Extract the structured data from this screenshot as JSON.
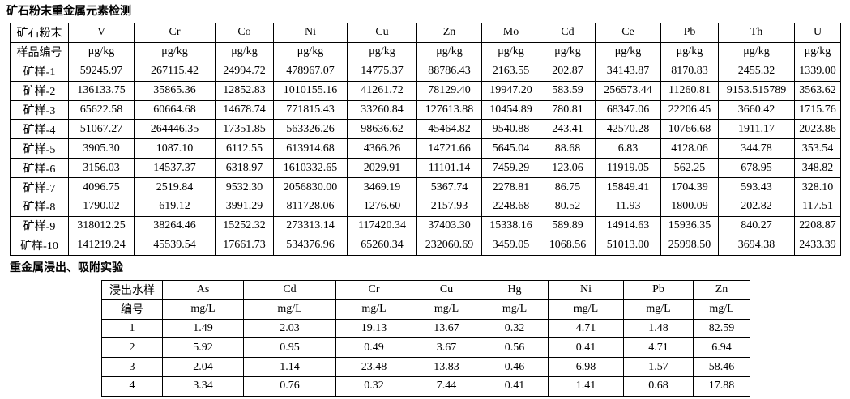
{
  "tables": [
    {
      "title": "矿石粉末重金属元素检测",
      "rows": [
        [
          "矿石粉末",
          "V",
          "Cr",
          "Co",
          "Ni",
          "Cu",
          "Zn",
          "Mo",
          "Cd",
          "Ce",
          "Pb",
          "Th",
          "U"
        ],
        [
          "样品编号",
          "μg/kg",
          "μg/kg",
          "μg/kg",
          "μg/kg",
          "μg/kg",
          "μg/kg",
          "μg/kg",
          "μg/kg",
          "μg/kg",
          "μg/kg",
          "μg/kg",
          "μg/kg"
        ],
        [
          "矿样-1",
          "59245.97",
          "267115.42",
          "24994.72",
          "478967.07",
          "14775.37",
          "88786.43",
          "2163.55",
          "202.87",
          "34143.87",
          "8170.83",
          "2455.32",
          "1339.00"
        ],
        [
          "矿样-2",
          "136133.75",
          "35865.36",
          "12852.83",
          "1010155.16",
          "41261.72",
          "78129.40",
          "19947.20",
          "583.59",
          "256573.44",
          "11260.81",
          "9153.515789",
          "3563.62"
        ],
        [
          "矿样-3",
          "65622.58",
          "60664.68",
          "14678.74",
          "771815.43",
          "33260.84",
          "127613.88",
          "10454.89",
          "780.81",
          "68347.06",
          "22206.45",
          "3660.42",
          "1715.76"
        ],
        [
          "矿样-4",
          "51067.27",
          "264446.35",
          "17351.85",
          "563326.26",
          "98636.62",
          "45464.82",
          "9540.88",
          "243.41",
          "42570.28",
          "10766.68",
          "1911.17",
          "2023.86"
        ],
        [
          "矿样-5",
          "3905.30",
          "1087.10",
          "6112.55",
          "613914.68",
          "4366.26",
          "14721.66",
          "5645.04",
          "88.68",
          "6.83",
          "4128.06",
          "344.78",
          "353.54"
        ],
        [
          "矿样-6",
          "3156.03",
          "14537.37",
          "6318.97",
          "1610332.65",
          "2029.91",
          "11101.14",
          "7459.29",
          "123.06",
          "11919.05",
          "562.25",
          "678.95",
          "348.82"
        ],
        [
          "矿样-7",
          "4096.75",
          "2519.84",
          "9532.30",
          "2056830.00",
          "3469.19",
          "5367.74",
          "2278.81",
          "86.75",
          "15849.41",
          "1704.39",
          "593.43",
          "328.10"
        ],
        [
          "矿样-8",
          "1790.02",
          "619.12",
          "3991.29",
          "811728.06",
          "1276.60",
          "2157.93",
          "2248.68",
          "80.52",
          "11.93",
          "1800.09",
          "202.82",
          "117.51"
        ],
        [
          "矿样-9",
          "318012.25",
          "38264.46",
          "15252.32",
          "273313.14",
          "117420.34",
          "37403.30",
          "15338.16",
          "589.89",
          "14914.63",
          "15936.35",
          "840.27",
          "2208.87"
        ],
        [
          "矿样-10",
          "141219.24",
          "45539.54",
          "17661.73",
          "534376.96",
          "65260.34",
          "232060.69",
          "3459.05",
          "1068.56",
          "51013.00",
          "25998.50",
          "3694.38",
          "2433.39"
        ]
      ]
    },
    {
      "title": "重金属浸出、吸附实验",
      "rows": [
        [
          "浸出水样",
          "As",
          "Cd",
          "Cr",
          "Cu",
          "Hg",
          "Ni",
          "Pb",
          "Zn"
        ],
        [
          "编号",
          "mg/L",
          "mg/L",
          "mg/L",
          "mg/L",
          "mg/L",
          "mg/L",
          "mg/L",
          "mg/L"
        ],
        [
          "1",
          "1.49",
          "2.03",
          "19.13",
          "13.67",
          "0.32",
          "4.71",
          "1.48",
          "82.59"
        ],
        [
          "2",
          "5.92",
          "0.95",
          "0.49",
          "3.67",
          "0.56",
          "0.41",
          "4.71",
          "6.94"
        ],
        [
          "3",
          "2.04",
          "1.14",
          "23.48",
          "13.83",
          "0.46",
          "6.98",
          "1.57",
          "58.46"
        ],
        [
          "4",
          "3.34",
          "0.76",
          "0.32",
          "7.44",
          "0.41",
          "1.41",
          "0.68",
          "17.88"
        ]
      ]
    }
  ]
}
